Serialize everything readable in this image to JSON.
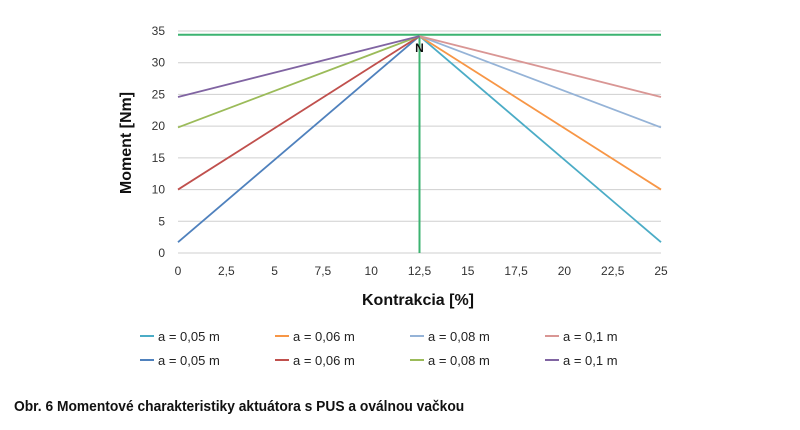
{
  "chart_data": {
    "type": "line",
    "xlabel": "Kontrakcia [%]",
    "ylabel": "Moment [Nm]",
    "xlim": [
      0,
      25
    ],
    "ylim": [
      0,
      35
    ],
    "x_ticks": [
      "0",
      "2,5",
      "5",
      "7,5",
      "10",
      "12,5",
      "15",
      "17,5",
      "20",
      "22,5",
      "25"
    ],
    "x_tick_values": [
      0,
      2.5,
      5,
      7.5,
      10,
      12.5,
      15,
      17.5,
      20,
      22.5,
      25
    ],
    "y_ticks": [
      "0",
      "5",
      "10",
      "15",
      "20",
      "25",
      "30",
      "35"
    ],
    "y_tick_values": [
      0,
      5,
      10,
      15,
      20,
      25,
      30,
      35
    ],
    "grid": "horizontal",
    "legend_position": "bottom",
    "annotation": {
      "text": "N",
      "x": 12.5,
      "y": 34.2
    },
    "series": [
      {
        "name": "a = 0,05 m",
        "color": "#4bacc6",
        "x": [
          12.5,
          25
        ],
        "y": [
          34.2,
          1.7
        ]
      },
      {
        "name": "a = 0,06 m",
        "color": "#f79646",
        "x": [
          12.5,
          25
        ],
        "y": [
          34.2,
          10
        ]
      },
      {
        "name": "a = 0,08 m",
        "color": "#95b3d7",
        "x": [
          12.5,
          25
        ],
        "y": [
          34.2,
          19.8
        ]
      },
      {
        "name": "a = 0,1 m",
        "color": "#d99694",
        "x": [
          12.5,
          25
        ],
        "y": [
          34.2,
          24.6
        ]
      },
      {
        "name": "a = 0,05 m",
        "color": "#4f81bd",
        "x": [
          0,
          12.5
        ],
        "y": [
          1.7,
          34.2
        ]
      },
      {
        "name": "a = 0,06 m",
        "color": "#c0504d",
        "x": [
          0,
          12.5
        ],
        "y": [
          10,
          34.2
        ]
      },
      {
        "name": "a = 0,08 m",
        "color": "#9bbb59",
        "x": [
          0,
          12.5
        ],
        "y": [
          19.8,
          34.2
        ]
      },
      {
        "name": "a = 0,1 m",
        "color": "#8064a2",
        "x": [
          0,
          12.5
        ],
        "y": [
          24.6,
          34.2
        ]
      }
    ],
    "reference_lines": [
      {
        "color": "#3cb371",
        "x": [
          0,
          25
        ],
        "y": [
          34.4,
          34.4
        ]
      },
      {
        "color": "#3cb371",
        "x": [
          12.5,
          12.5
        ],
        "y": [
          0,
          34.4
        ]
      }
    ]
  },
  "caption": "Obr. 6 Momentové charakteristiky aktuátora s PUS a oválnou vačkou"
}
